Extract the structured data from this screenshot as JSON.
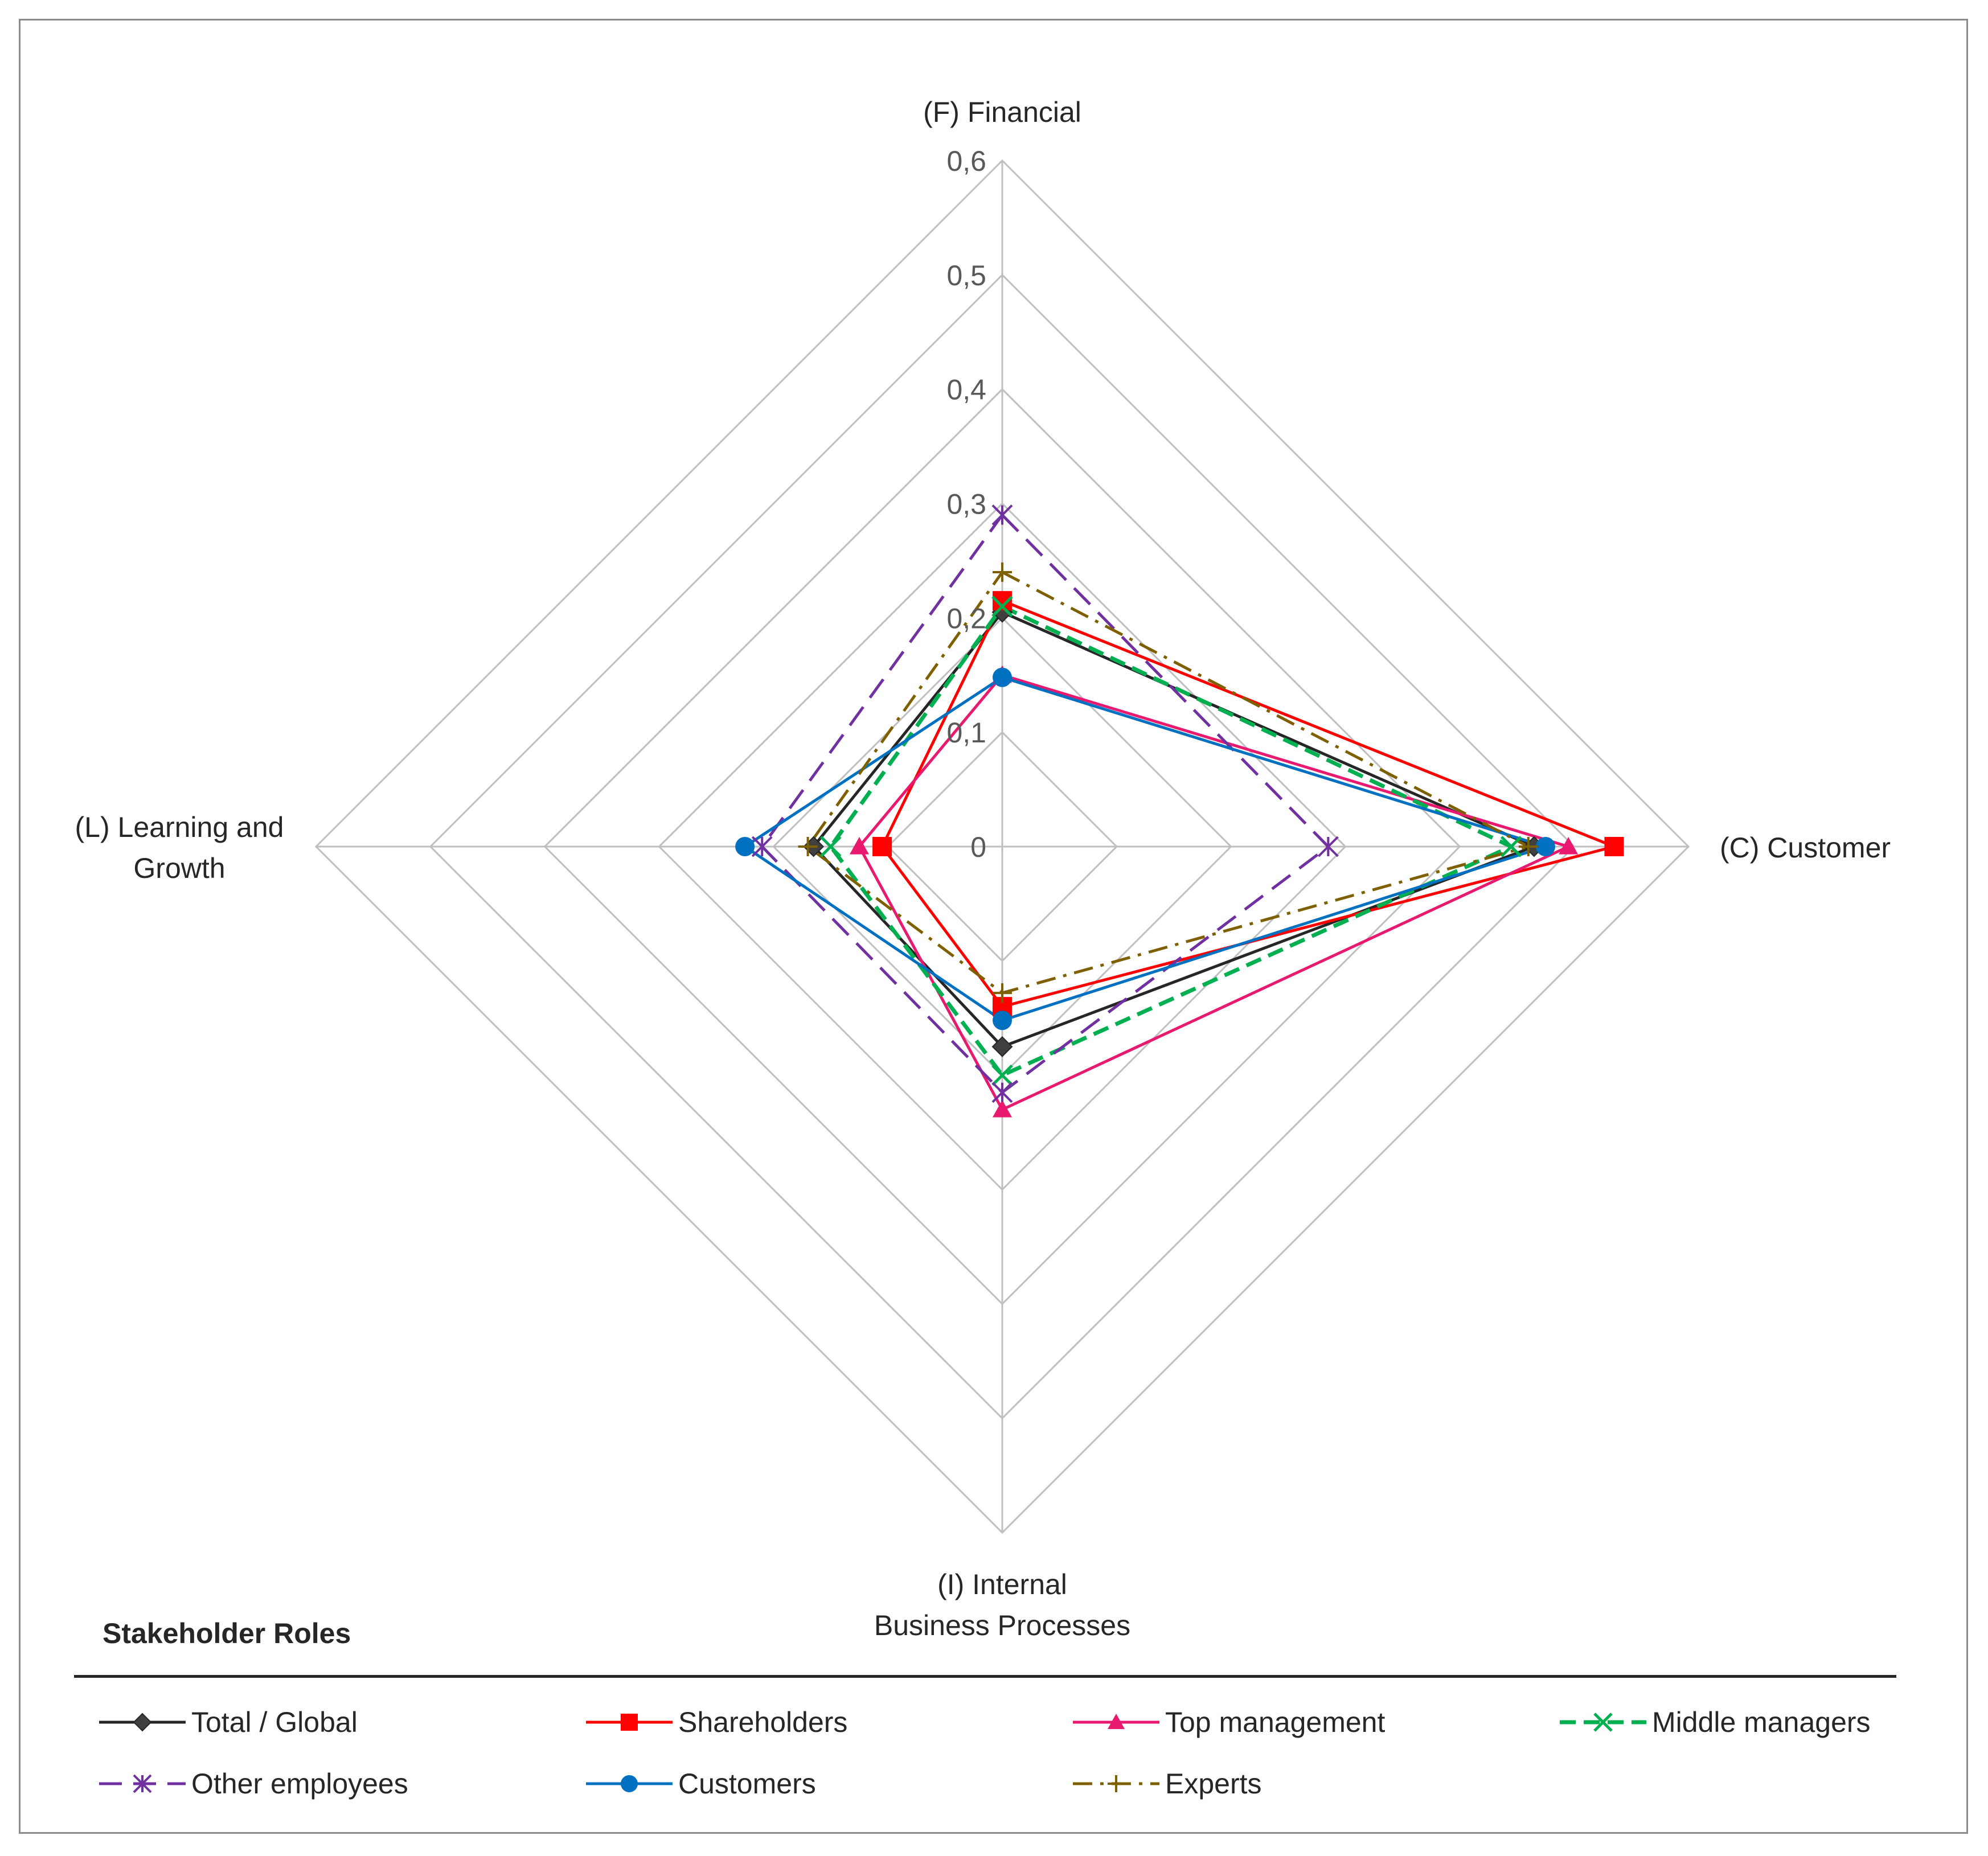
{
  "chart_data": {
    "type": "radar",
    "title": "",
    "axes": [
      "(F) Financial",
      "(C) Customer",
      "(I) Internal Business Processes",
      "(L) Learning and Growth"
    ],
    "axis_title_lines": {
      "F": [
        "(F) Financial"
      ],
      "C": [
        "(C) Customer"
      ],
      "I": [
        "(I) Internal",
        "Business Processes"
      ],
      "L": [
        "(L) Learning and",
        "Growth"
      ]
    },
    "rlim": [
      0,
      0.6
    ],
    "ticks": [
      0,
      0.1,
      0.2,
      0.3,
      0.4,
      0.5,
      0.6
    ],
    "tick_labels": [
      "0",
      "0,1",
      "0,2",
      "0,3",
      "0,4",
      "0,5",
      "0,6"
    ],
    "grid": true,
    "series": [
      {
        "name": "Total / Global",
        "values": [
          0.205,
          0.465,
          0.175,
          0.165
        ],
        "color": "#262626",
        "dash": "solid",
        "marker": "diamond"
      },
      {
        "name": "Shareholders",
        "values": [
          0.215,
          0.535,
          0.14,
          0.105
        ],
        "color": "#ff0000",
        "dash": "solid",
        "marker": "square"
      },
      {
        "name": "Top management",
        "values": [
          0.15,
          0.495,
          0.23,
          0.125
        ],
        "color": "#e8196e",
        "dash": "solid",
        "marker": "triangle"
      },
      {
        "name": "Middle managers",
        "values": [
          0.21,
          0.445,
          0.2,
          0.15
        ],
        "color": "#00b050",
        "dash": "dash",
        "marker": "x"
      },
      {
        "name": "Other employees",
        "values": [
          0.29,
          0.285,
          0.215,
          0.21
        ],
        "color": "#7030a0",
        "dash": "longdash",
        "marker": "asterisk"
      },
      {
        "name": "Customers",
        "values": [
          0.148,
          0.475,
          0.152,
          0.225
        ],
        "color": "#0070c0",
        "dash": "solid",
        "marker": "circle"
      },
      {
        "name": "Experts",
        "values": [
          0.24,
          0.46,
          0.128,
          0.17
        ],
        "color": "#7f6000",
        "dash": "dashdot",
        "marker": "plus"
      }
    ],
    "legend_title": "Stakeholder Roles",
    "legend_position": "bottom"
  }
}
